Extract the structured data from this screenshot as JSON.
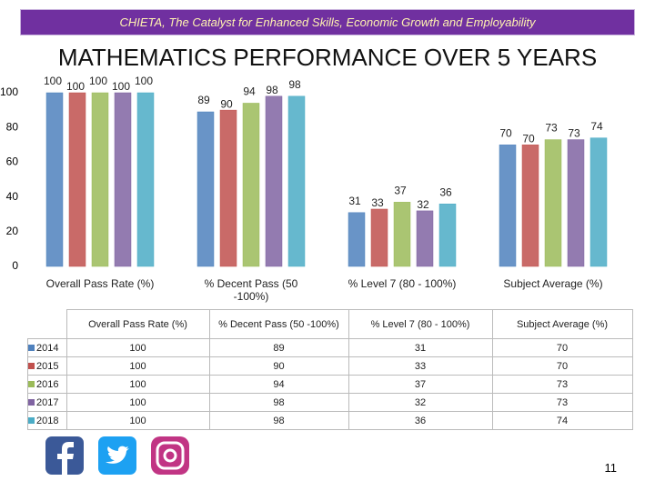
{
  "header": "CHIETA, The Catalyst for Enhanced Skills, Economic Growth and Employability",
  "page_number": "11",
  "chart_data": {
    "type": "bar",
    "title": "MATHEMATICS PERFORMANCE OVER 5 YEARS",
    "categories": [
      "Overall Pass Rate (%)",
      "% Decent Pass (50 -100%)",
      "% Level 7 (80 - 100%)",
      "Subject Average (%)"
    ],
    "series": [
      {
        "name": "2014",
        "color": "#4f81bd",
        "values": [
          100,
          89,
          31,
          70
        ]
      },
      {
        "name": "2015",
        "color": "#c0504d",
        "values": [
          100,
          90,
          33,
          70
        ]
      },
      {
        "name": "2016",
        "color": "#9bbb59",
        "values": [
          100,
          94,
          37,
          73
        ]
      },
      {
        "name": "2017",
        "color": "#8064a2",
        "values": [
          100,
          98,
          32,
          73
        ]
      },
      {
        "name": "2018",
        "color": "#4bacc6",
        "values": [
          100,
          98,
          36,
          74
        ]
      }
    ],
    "ylim": [
      0,
      100
    ],
    "yticks": [
      0,
      20,
      40,
      60,
      80,
      100
    ]
  }
}
